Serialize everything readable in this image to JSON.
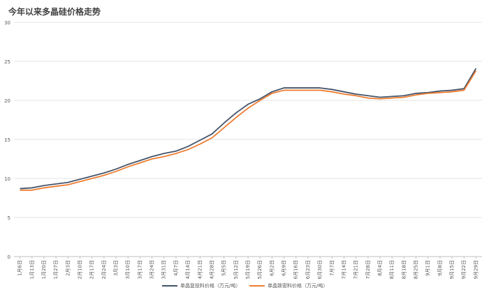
{
  "chart_data": {
    "type": "line",
    "title": "今年以来多晶硅价格走势",
    "xlabel": "",
    "ylabel": "",
    "ylim": [
      0,
      30
    ],
    "yticks": [
      0,
      5,
      10,
      15,
      20,
      25,
      30
    ],
    "grid": true,
    "legend_position": "bottom",
    "x": [
      "1月6日",
      "1月13日",
      "1月20日",
      "1月27日",
      "2月3日",
      "2月10日",
      "2月17日",
      "2月24日",
      "3月3日",
      "3月10日",
      "3月17日",
      "3月24日",
      "3月31日",
      "4月7日",
      "4月14日",
      "4月21日",
      "4月28日",
      "5月5日",
      "5月12日",
      "5月19日",
      "5月26日",
      "6月2日",
      "6月9日",
      "6月16日",
      "6月23日",
      "6月30日",
      "7月7日",
      "7月14日",
      "7月21日",
      "7月28日",
      "8月4日",
      "8月11日",
      "8月18日",
      "8月25日",
      "9月1日",
      "9月8日",
      "9月15日",
      "9月22日",
      "9月29日"
    ],
    "series": [
      {
        "name": "单晶复投料价格（万元/吨）",
        "color": "#44546a",
        "values": [
          8.7,
          8.8,
          9.1,
          9.3,
          9.5,
          9.9,
          10.3,
          10.7,
          11.2,
          11.8,
          12.3,
          12.8,
          13.2,
          13.5,
          14.1,
          14.9,
          15.7,
          17.1,
          18.4,
          19.5,
          20.2,
          21.1,
          21.6,
          21.6,
          21.6,
          21.6,
          21.4,
          21.1,
          20.8,
          20.6,
          20.4,
          20.5,
          20.6,
          20.9,
          21.0,
          21.2,
          21.3,
          21.5,
          24.1
        ]
      },
      {
        "name": "单晶致密料价格（万元/吨）",
        "color": "#ed7d31",
        "values": [
          8.5,
          8.5,
          8.8,
          9.0,
          9.2,
          9.6,
          10.0,
          10.4,
          10.9,
          11.5,
          12.0,
          12.5,
          12.8,
          13.2,
          13.7,
          14.4,
          15.2,
          16.5,
          17.8,
          19.0,
          20.0,
          20.9,
          21.3,
          21.3,
          21.3,
          21.3,
          21.1,
          20.8,
          20.6,
          20.3,
          20.2,
          20.3,
          20.4,
          20.7,
          20.9,
          21.0,
          21.1,
          21.3,
          23.8
        ]
      }
    ]
  }
}
